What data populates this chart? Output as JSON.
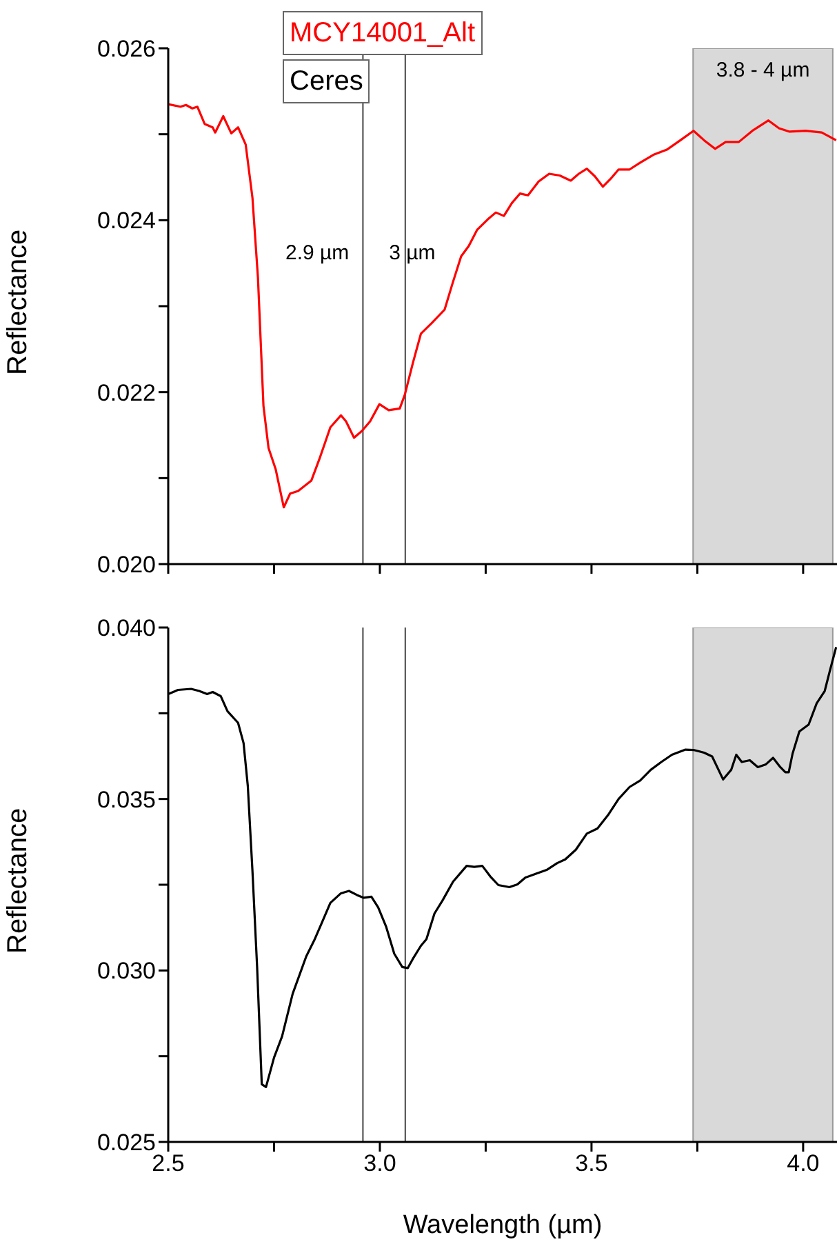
{
  "chart_data": [
    {
      "type": "line",
      "ylabel": "Reflectance",
      "xlim": [
        2.5,
        4.08
      ],
      "ylim": [
        0.02,
        0.026
      ],
      "xticks": [
        {
          "value": 2.5,
          "label": null
        },
        {
          "value": 2.75,
          "label": null
        },
        {
          "value": 3.0,
          "label": null
        },
        {
          "value": 3.25,
          "label": null
        },
        {
          "value": 3.5,
          "label": null
        },
        {
          "value": 3.75,
          "label": null
        },
        {
          "value": 4.0,
          "label": null
        }
      ],
      "yticks": [
        {
          "value": 0.02,
          "label": "0.020"
        },
        {
          "value": 0.021,
          "label": null
        },
        {
          "value": 0.022,
          "label": "0.022"
        },
        {
          "value": 0.023,
          "label": null
        },
        {
          "value": 0.024,
          "label": "0.024"
        },
        {
          "value": 0.025,
          "label": null
        },
        {
          "value": 0.026,
          "label": "0.026"
        }
      ],
      "tick_labels": "y",
      "legend": "top",
      "x": [
        2.5,
        2.529,
        2.542,
        2.557,
        2.569,
        2.586,
        2.605,
        2.611,
        2.63,
        2.649,
        2.665,
        2.683,
        2.699,
        2.712,
        2.725,
        2.737,
        2.754,
        2.773,
        2.788,
        2.807,
        2.838,
        2.857,
        2.883,
        2.908,
        2.92,
        2.939,
        2.958,
        2.977,
        2.999,
        3.021,
        3.047,
        3.059,
        3.078,
        3.097,
        3.122,
        3.153,
        3.172,
        3.192,
        3.21,
        3.23,
        3.255,
        3.274,
        3.293,
        3.312,
        3.331,
        3.35,
        3.375,
        3.4,
        3.425,
        3.451,
        3.47,
        3.489,
        3.508,
        3.527,
        3.545,
        3.564,
        3.59,
        3.615,
        3.646,
        3.678,
        3.71,
        3.741,
        3.766,
        3.792,
        3.817,
        3.848,
        3.88,
        3.918,
        3.943,
        3.968,
        4.006,
        4.044,
        4.078
      ],
      "series": [
        {
          "name": "MCY14001_Alt",
          "color": "#ff0000",
          "values": [
            0.02535,
            0.02532,
            0.02534,
            0.0253,
            0.02532,
            0.02512,
            0.02508,
            0.02502,
            0.02521,
            0.02501,
            0.02508,
            0.02488,
            0.02426,
            0.02333,
            0.02184,
            0.02135,
            0.0211,
            0.02066,
            0.02082,
            0.02085,
            0.02097,
            0.02122,
            0.02159,
            0.02173,
            0.02166,
            0.02147,
            0.02155,
            0.02166,
            0.02186,
            0.02179,
            0.02181,
            0.02197,
            0.02234,
            0.02268,
            0.0228,
            0.02296,
            0.02327,
            0.02358,
            0.0237,
            0.02389,
            0.02401,
            0.02409,
            0.02405,
            0.0242,
            0.02431,
            0.02429,
            0.02445,
            0.02454,
            0.02452,
            0.02446,
            0.02454,
            0.0246,
            0.02451,
            0.02439,
            0.02448,
            0.02459,
            0.02459,
            0.02467,
            0.02476,
            0.02482,
            0.02493,
            0.02504,
            0.02493,
            0.02483,
            0.02491,
            0.02491,
            0.02504,
            0.02516,
            0.02507,
            0.02503,
            0.02504,
            0.02502,
            0.02493
          ]
        }
      ],
      "ref_lines": [
        {
          "axis": "x",
          "value": 2.96,
          "label": "2.9 µm",
          "color": "#444444"
        },
        {
          "axis": "x",
          "value": 3.06,
          "label": "3 µm",
          "color": "#444444"
        }
      ],
      "bands": [
        {
          "axis": "x",
          "from": 3.74,
          "to": 4.07,
          "label": "3.8 - 4 µm",
          "color": "#d9d9d9"
        }
      ]
    },
    {
      "type": "line",
      "xlabel": "Wavelength (µm)",
      "ylabel": "Reflectance",
      "xlim": [
        2.5,
        4.08
      ],
      "ylim": [
        0.025,
        0.04
      ],
      "xticks": [
        2.5,
        {
          "value": 2.75,
          "label": null
        },
        {
          "value": 3.0,
          "label": "3.0"
        },
        {
          "value": 3.25,
          "label": null
        },
        3.5,
        {
          "value": 3.75,
          "label": null
        },
        {
          "value": 4.0,
          "label": "4.0"
        }
      ],
      "yticks": [
        {
          "value": 0.025,
          "label": "0.025"
        },
        {
          "value": 0.0275,
          "label": null
        },
        {
          "value": 0.03,
          "label": "0.030"
        },
        {
          "value": 0.0325,
          "label": null
        },
        {
          "value": 0.035,
          "label": "0.035"
        },
        {
          "value": 0.0375,
          "label": null
        },
        {
          "value": 0.04,
          "label": "0.040"
        }
      ],
      "legend": "top",
      "x": [
        2.5,
        2.523,
        2.554,
        2.573,
        2.592,
        2.605,
        2.624,
        2.64,
        2.665,
        2.678,
        2.688,
        2.699,
        2.71,
        2.721,
        2.731,
        2.75,
        2.769,
        2.794,
        2.826,
        2.845,
        2.864,
        2.883,
        2.908,
        2.927,
        2.946,
        2.962,
        2.98,
        2.996,
        3.015,
        3.034,
        3.053,
        3.066,
        3.078,
        3.097,
        3.11,
        3.129,
        3.148,
        3.173,
        3.205,
        3.223,
        3.242,
        3.261,
        3.28,
        3.306,
        3.325,
        3.344,
        3.369,
        3.394,
        3.419,
        3.438,
        3.463,
        3.489,
        3.514,
        3.539,
        3.564,
        3.59,
        3.615,
        3.64,
        3.665,
        3.69,
        3.722,
        3.741,
        3.766,
        3.785,
        3.811,
        3.83,
        3.842,
        3.855,
        3.874,
        3.893,
        3.912,
        3.929,
        3.946,
        3.958,
        3.966,
        3.975,
        3.991,
        4.013,
        4.032,
        4.051,
        4.063,
        4.078
      ],
      "series": [
        {
          "name": "Ceres",
          "color": "#000000",
          "values": [
            0.03806,
            0.03818,
            0.03821,
            0.03815,
            0.03806,
            0.03812,
            0.038,
            0.03756,
            0.03722,
            0.03663,
            0.03538,
            0.0329,
            0.0301,
            0.02668,
            0.0266,
            0.02746,
            0.02808,
            0.02932,
            0.03041,
            0.03088,
            0.03142,
            0.03197,
            0.03225,
            0.03232,
            0.0322,
            0.03212,
            0.03215,
            0.03184,
            0.03127,
            0.03049,
            0.0301,
            0.03007,
            0.03034,
            0.03072,
            0.03091,
            0.03166,
            0.03204,
            0.03259,
            0.03305,
            0.03302,
            0.03305,
            0.03274,
            0.03249,
            0.03243,
            0.03251,
            0.03271,
            0.03282,
            0.03293,
            0.03313,
            0.03324,
            0.03352,
            0.03399,
            0.03414,
            0.03453,
            0.035,
            0.03535,
            0.03554,
            0.03585,
            0.03608,
            0.03629,
            0.03644,
            0.03643,
            0.03635,
            0.03624,
            0.03557,
            0.03585,
            0.03629,
            0.03608,
            0.03613,
            0.03593,
            0.03601,
            0.0362,
            0.03593,
            0.03578,
            0.03578,
            0.03632,
            0.03697,
            0.03717,
            0.03779,
            0.03815,
            0.03873,
            0.03943
          ]
        }
      ],
      "ref_lines": [
        {
          "axis": "x",
          "value": 2.96,
          "color": "#444444"
        },
        {
          "axis": "x",
          "value": 3.06,
          "color": "#444444"
        }
      ],
      "bands": [
        {
          "axis": "x",
          "from": 3.74,
          "to": 4.07,
          "color": "#d9d9d9"
        }
      ]
    }
  ]
}
